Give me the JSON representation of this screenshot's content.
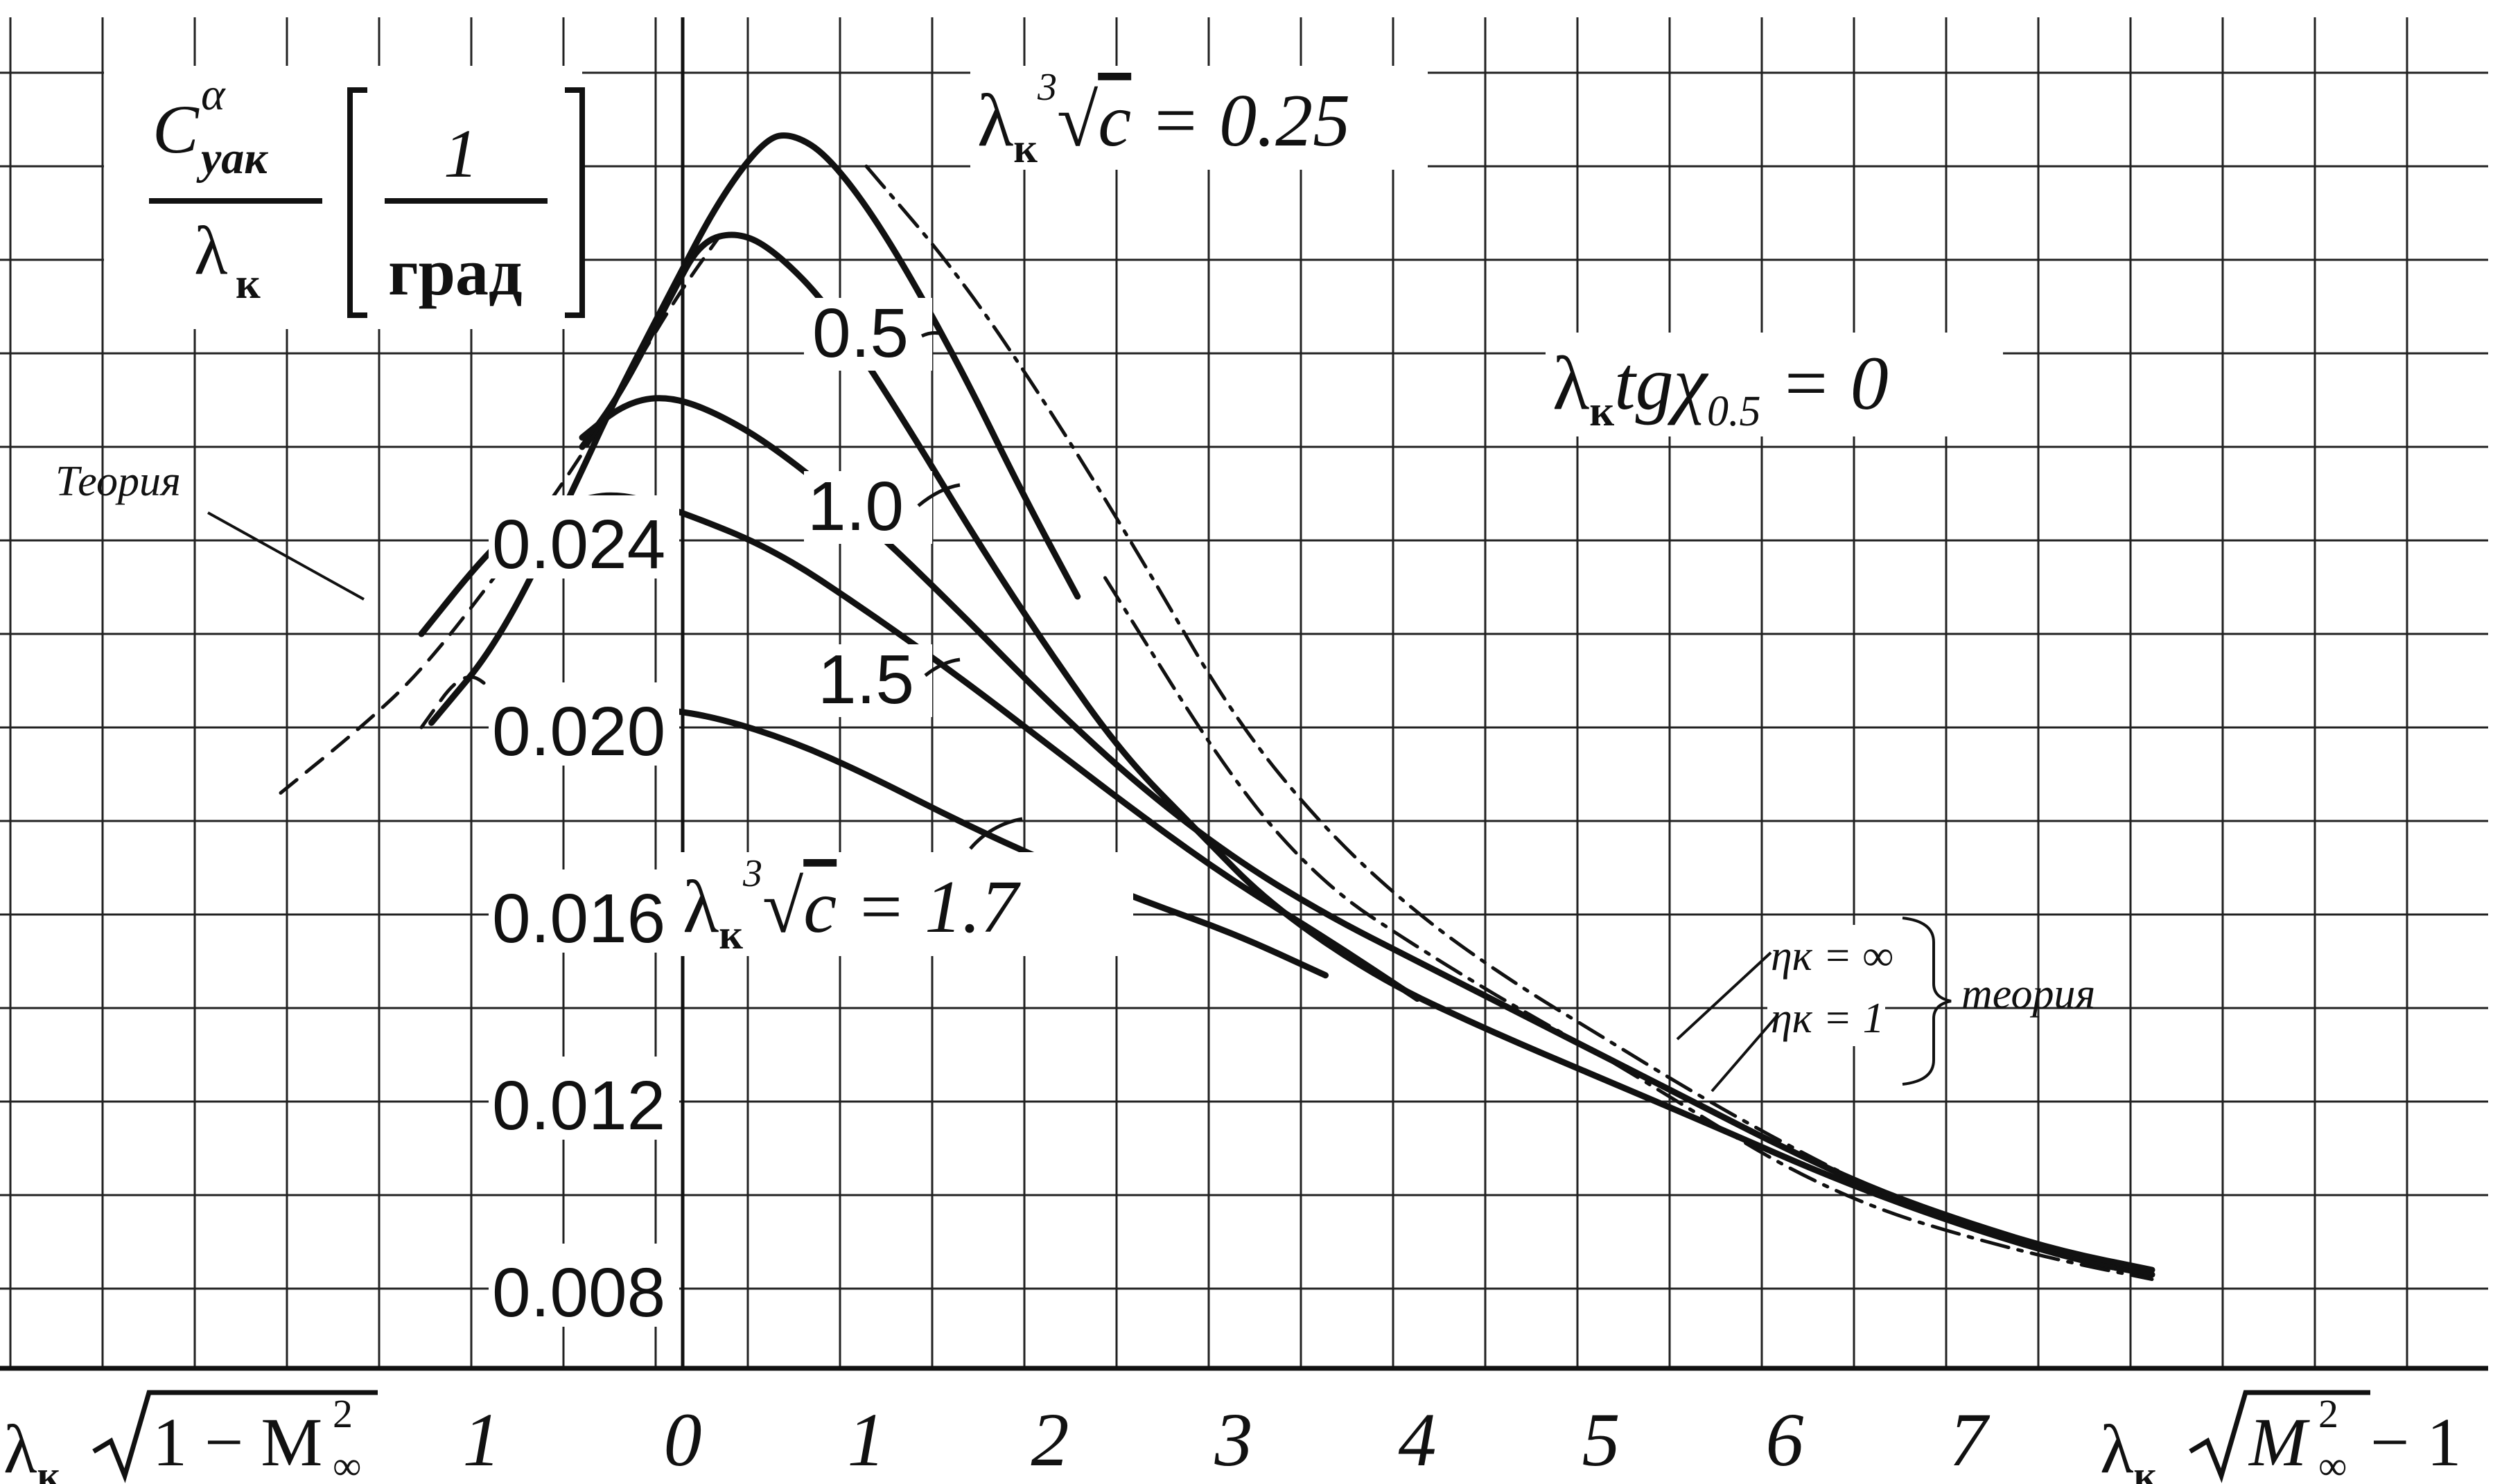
{
  "chart_data": {
    "type": "line",
    "title": "",
    "ylabel": {
      "numerator_base": "C",
      "numerator_sup": "α",
      "numerator_sub": "yaк",
      "denominator_base": "λ",
      "denominator_sub": "к",
      "unit_numerator": "1",
      "unit_denominator": "град"
    },
    "condition_label": {
      "base": "λ",
      "sub": "к",
      "rest": "tgχ",
      "rest_sub": "0.5",
      "tail": " = 0"
    },
    "y_ticks": [
      {
        "value": 0.024,
        "label": "0.024"
      },
      {
        "value": 0.02,
        "label": "0.020"
      },
      {
        "value": 0.016,
        "label": "0.016"
      },
      {
        "value": 0.012,
        "label": "0.012"
      },
      {
        "value": 0.008,
        "label": "0.008"
      }
    ],
    "ylim": [
      0.0055,
      0.0335
    ],
    "xlabel_subsonic": {
      "base": "λ",
      "sub": "к",
      "root": "1 − M",
      "root_sup": "2",
      "root_sub": "∞"
    },
    "xlabel_supersonic": {
      "base": "λ",
      "sub": "к",
      "root": "M",
      "root_sup": "2",
      "root_sub": "∞",
      "tail": " − 1"
    },
    "x_ticks_subsonic": [
      {
        "value": 1,
        "label": "1"
      },
      {
        "value": 0,
        "label": "0"
      }
    ],
    "x_ticks_supersonic": [
      {
        "value": 1,
        "label": "1"
      },
      {
        "value": 2,
        "label": "2"
      },
      {
        "value": 3,
        "label": "3"
      },
      {
        "value": 4,
        "label": "4"
      },
      {
        "value": 5,
        "label": "5"
      },
      {
        "value": 6,
        "label": "6"
      },
      {
        "value": 7,
        "label": "7"
      }
    ],
    "x_note": "Combined axis: subsonic branch λк√(1−M²∞) from 2 down to 0 (left), supersonic branch λк√(M²∞−1) from 0 to 8 (right); x values below are on one linear scale where negative = subsonic parameter.",
    "xlim": [
      -2.0,
      8.0
    ],
    "grid": true,
    "series": [
      {
        "name": "0.25",
        "label_prefix": "λк∛c = ",
        "style": "solid",
        "points": [
          [
            -1.25,
            0.0201
          ],
          [
            -0.9,
            0.0219
          ],
          [
            -0.5,
            0.0255
          ],
          [
            -0.35,
            0.0269
          ],
          [
            -0.05,
            0.0294
          ],
          [
            0.2,
            0.0313
          ],
          [
            0.45,
            0.0326
          ],
          [
            0.6,
            0.0327
          ],
          [
            0.8,
            0.0322
          ],
          [
            1.1,
            0.0306
          ],
          [
            1.5,
            0.0278
          ],
          [
            1.85,
            0.025
          ],
          [
            2.15,
            0.0228
          ]
        ]
      },
      {
        "name": "0.5",
        "style": "solid",
        "points": [
          [
            -0.5,
            0.026
          ],
          [
            -0.3,
            0.0272
          ],
          [
            -0.05,
            0.0293
          ],
          [
            0.1,
            0.0304
          ],
          [
            0.3,
            0.0306
          ],
          [
            0.5,
            0.0302
          ],
          [
            0.8,
            0.029
          ],
          [
            1.2,
            0.0266
          ],
          [
            1.6,
            0.024
          ],
          [
            2.0,
            0.0216
          ],
          [
            2.4,
            0.0194
          ],
          [
            2.8,
            0.0178
          ],
          [
            3.2,
            0.0162
          ],
          [
            3.8,
            0.0146
          ],
          [
            4.4,
            0.0135
          ],
          [
            5.0,
            0.0125
          ],
          [
            5.6,
            0.0115
          ],
          [
            6.3,
            0.0103
          ],
          [
            7.0,
            0.0093
          ],
          [
            7.6,
            0.0086
          ],
          [
            8.0,
            0.0083
          ]
        ]
      },
      {
        "name": "1.0",
        "style": "solid",
        "points": [
          [
            -0.5,
            0.0262
          ],
          [
            -0.3,
            0.0269
          ],
          [
            -0.1,
            0.0271
          ],
          [
            0.15,
            0.0268
          ],
          [
            0.5,
            0.026
          ],
          [
            1.0,
            0.0244
          ],
          [
            1.5,
            0.0225
          ],
          [
            2.0,
            0.0205
          ],
          [
            2.5,
            0.0187
          ],
          [
            3.0,
            0.0172
          ],
          [
            3.5,
            0.016
          ],
          [
            4.0,
            0.015
          ],
          [
            4.5,
            0.014
          ],
          [
            5.0,
            0.013
          ],
          [
            5.5,
            0.012
          ],
          [
            6.0,
            0.011
          ],
          [
            6.5,
            0.0101
          ],
          [
            7.0,
            0.0094
          ],
          [
            7.5,
            0.0088
          ],
          [
            8.0,
            0.0084
          ]
        ]
      },
      {
        "name": "1.5",
        "style": "solid",
        "points": [
          [
            -1.3,
            0.022
          ],
          [
            -1.0,
            0.0236
          ],
          [
            -0.8,
            0.0244
          ],
          [
            -0.5,
            0.0249
          ],
          [
            -0.3,
            0.025
          ],
          [
            0.0,
            0.0246
          ],
          [
            0.5,
            0.0238
          ],
          [
            1.0,
            0.0225
          ],
          [
            1.5,
            0.0211
          ],
          [
            2.0,
            0.0196
          ],
          [
            2.5,
            0.0181
          ],
          [
            3.0,
            0.0167
          ],
          [
            3.5,
            0.0155
          ],
          [
            4.0,
            0.0142
          ]
        ]
      },
      {
        "name": "1.7",
        "label_prefix": "λк∛c = ",
        "style": "solid",
        "points": [
          [
            -0.3,
            0.0204
          ],
          [
            -0.1,
            0.0204
          ],
          [
            0.2,
            0.0202
          ],
          [
            0.6,
            0.0197
          ],
          [
            1.0,
            0.019
          ],
          [
            1.5,
            0.018
          ],
          [
            2.0,
            0.0171
          ],
          [
            2.5,
            0.0163
          ],
          [
            3.0,
            0.0156
          ],
          [
            3.5,
            0.0147
          ]
        ]
      },
      {
        "name": "Теория",
        "style": "dashed",
        "points": [
          [
            -2.0,
            0.0186
          ],
          [
            -1.6,
            0.02
          ],
          [
            -1.3,
            0.0212
          ],
          [
            -0.9,
            0.0234
          ],
          [
            -0.5,
            0.0258
          ],
          [
            -0.2,
            0.028
          ],
          [
            0.0,
            0.0294
          ],
          [
            0.2,
            0.0305
          ]
        ]
      },
      {
        "name": "Теория (dip)",
        "style": "dashed",
        "points": [
          [
            -1.3,
            0.02
          ],
          [
            -1.1,
            0.0212
          ],
          [
            -0.95,
            0.0209
          ],
          [
            -0.85,
            0.0198
          ],
          [
            -0.75,
            0.0192
          ],
          [
            -0.6,
            0.0193
          ],
          [
            -0.45,
            0.0197
          ],
          [
            -0.3,
            0.0202
          ]
        ]
      },
      {
        "name": "ηк = ∞",
        "style": "dash-dot",
        "points": [
          [
            1.0,
            0.032
          ],
          [
            1.5,
            0.0297
          ],
          [
            2.0,
            0.0268
          ],
          [
            2.5,
            0.0236
          ],
          [
            3.0,
            0.0202
          ],
          [
            3.5,
            0.0178
          ],
          [
            4.0,
            0.016
          ],
          [
            4.5,
            0.0146
          ],
          [
            5.0,
            0.0134
          ],
          [
            5.5,
            0.0122
          ],
          [
            6.0,
            0.0111
          ],
          [
            6.5,
            0.0101
          ],
          [
            7.0,
            0.0093
          ],
          [
            7.5,
            0.0087
          ],
          [
            8.0,
            0.0083
          ]
        ]
      },
      {
        "name": "ηк = 1",
        "style": "dash-dot",
        "points": [
          [
            2.3,
            0.0232
          ],
          [
            3.0,
            0.0188
          ],
          [
            3.5,
            0.0166
          ],
          [
            4.0,
            0.0153
          ],
          [
            4.5,
            0.0141
          ],
          [
            5.0,
            0.013
          ],
          [
            5.5,
            0.0118
          ],
          [
            6.0,
            0.0106
          ],
          [
            6.5,
            0.0097
          ],
          [
            7.0,
            0.0091
          ],
          [
            7.5,
            0.0086
          ],
          [
            8.0,
            0.0082
          ]
        ]
      }
    ],
    "annotations": {
      "teoria_left": "Теория",
      "eta_inf": "ηк = ∞",
      "eta_one": "ηк = 1",
      "teoria_right": "теория"
    }
  }
}
